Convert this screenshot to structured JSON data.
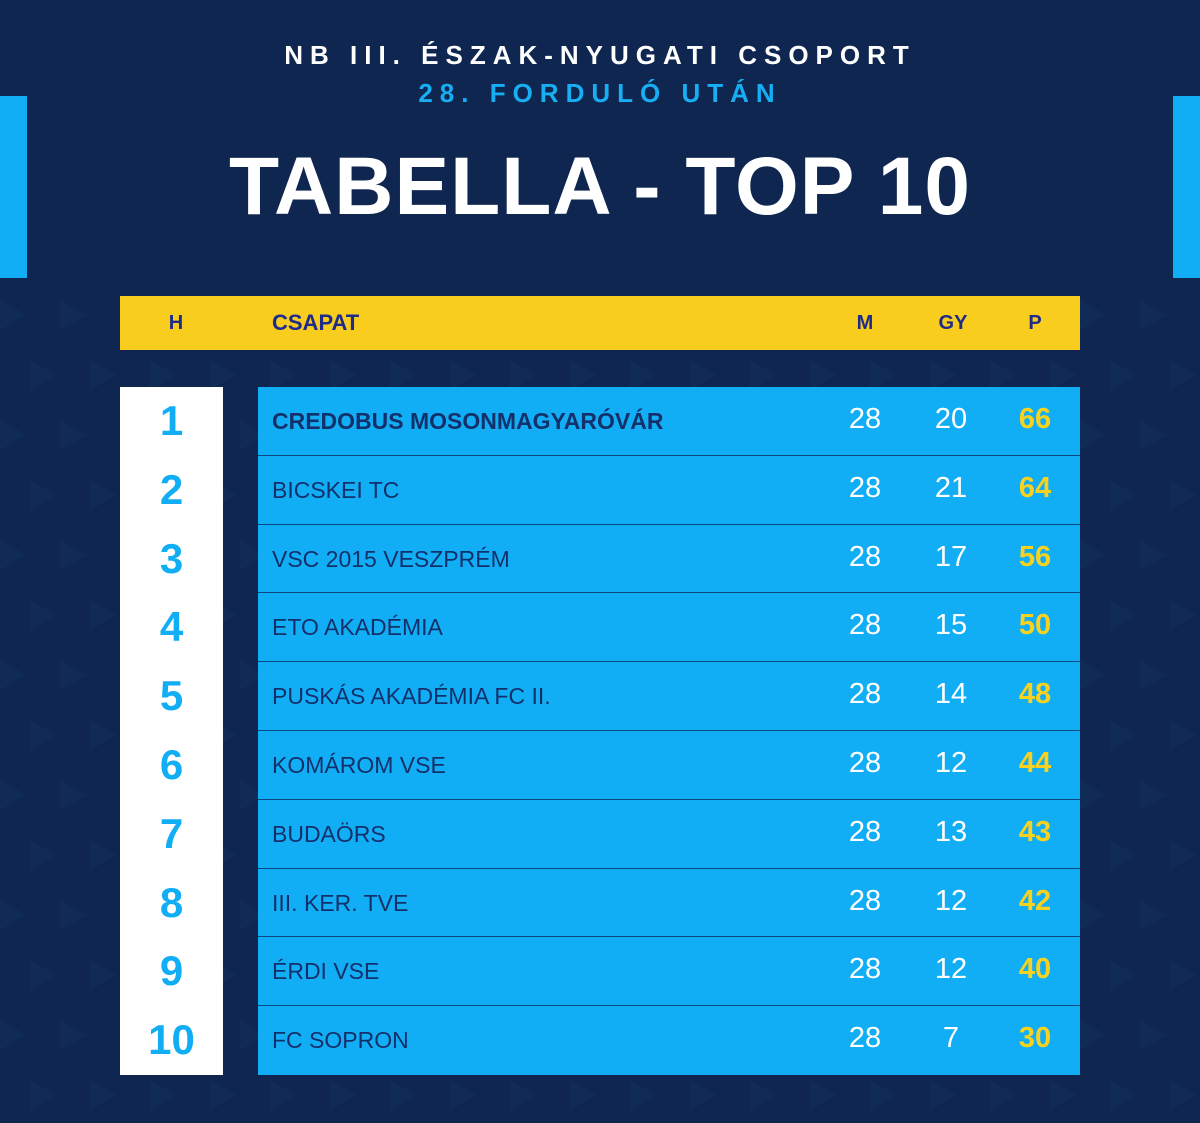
{
  "header": {
    "subtitle": "NB III. ÉSZAK-NYUGATI CSOPORT",
    "round": "28. FORDULÓ UTÁN",
    "title": "TABELLA - TOP 10"
  },
  "table": {
    "columns": {
      "pos": "H",
      "team": "CSAPAT",
      "m": "M",
      "gy": "GY",
      "p": "P"
    }
  },
  "colors": {
    "background": "#0f2750",
    "accent_blue": "#12aef5",
    "header_yellow": "#f8cd1d",
    "points_yellow": "#f8d21e"
  },
  "chart_data": {
    "type": "table",
    "title": "TABELLA - TOP 10",
    "columns": [
      "H",
      "CSAPAT",
      "M",
      "GY",
      "P"
    ],
    "rows": [
      {
        "pos": "1",
        "team": "CREDOBUS MOSONMAGYARÓVÁR",
        "m": "28",
        "gy": "20",
        "p": "66"
      },
      {
        "pos": "2",
        "team": "BICSKEI TC",
        "m": "28",
        "gy": "21",
        "p": "64"
      },
      {
        "pos": "3",
        "team": "VSC 2015 VESZPRÉM",
        "m": "28",
        "gy": "17",
        "p": "56"
      },
      {
        "pos": "4",
        "team": "ETO AKADÉMIA",
        "m": "28",
        "gy": "15",
        "p": "50"
      },
      {
        "pos": "5",
        "team": "PUSKÁS AKADÉMIA FC II.",
        "m": "28",
        "gy": "14",
        "p": "48"
      },
      {
        "pos": "6",
        "team": "KOMÁROM VSE",
        "m": "28",
        "gy": "12",
        "p": "44"
      },
      {
        "pos": "7",
        "team": "BUDAÖRS",
        "m": "28",
        "gy": "13",
        "p": "43"
      },
      {
        "pos": "8",
        "team": "III. KER. TVE",
        "m": "28",
        "gy": "12",
        "p": "42"
      },
      {
        "pos": "9",
        "team": "ÉRDI VSE",
        "m": "28",
        "gy": "12",
        "p": "40"
      },
      {
        "pos": "10",
        "team": "FC SOPRON",
        "m": "28",
        "gy": "7",
        "p": "30"
      }
    ]
  }
}
